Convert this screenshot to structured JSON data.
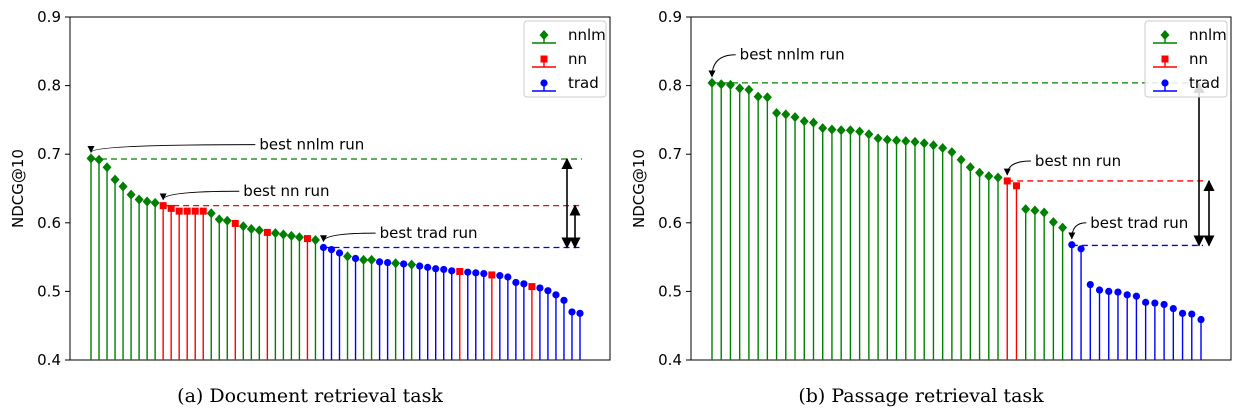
{
  "chart_data": [
    {
      "type": "stem",
      "ylabel": "NDCG@10",
      "ylim": [
        0.4,
        0.9
      ],
      "yticks": [
        "0.4",
        "0.5",
        "0.6",
        "0.7",
        "0.8",
        "0.9"
      ],
      "legend": [
        {
          "name": "nnlm",
          "color": "#008000",
          "marker": "diamond"
        },
        {
          "name": "nn",
          "color": "#ff0000",
          "marker": "square"
        },
        {
          "name": "trad",
          "color": "#0000ff",
          "marker": "circle"
        }
      ],
      "points": [
        {
          "y": 0.694,
          "s": "nnlm"
        },
        {
          "y": 0.692,
          "s": "nnlm"
        },
        {
          "y": 0.681,
          "s": "nnlm"
        },
        {
          "y": 0.663,
          "s": "nnlm"
        },
        {
          "y": 0.653,
          "s": "nnlm"
        },
        {
          "y": 0.641,
          "s": "nnlm"
        },
        {
          "y": 0.634,
          "s": "nnlm"
        },
        {
          "y": 0.631,
          "s": "nnlm"
        },
        {
          "y": 0.629,
          "s": "nnlm"
        },
        {
          "y": 0.625,
          "s": "nn"
        },
        {
          "y": 0.621,
          "s": "nn"
        },
        {
          "y": 0.617,
          "s": "nn"
        },
        {
          "y": 0.617,
          "s": "nn"
        },
        {
          "y": 0.617,
          "s": "nn"
        },
        {
          "y": 0.617,
          "s": "nn"
        },
        {
          "y": 0.614,
          "s": "nnlm"
        },
        {
          "y": 0.605,
          "s": "nnlm"
        },
        {
          "y": 0.603,
          "s": "nnlm"
        },
        {
          "y": 0.599,
          "s": "nn"
        },
        {
          "y": 0.595,
          "s": "nnlm"
        },
        {
          "y": 0.591,
          "s": "nnlm"
        },
        {
          "y": 0.589,
          "s": "nnlm"
        },
        {
          "y": 0.586,
          "s": "nn"
        },
        {
          "y": 0.585,
          "s": "nnlm"
        },
        {
          "y": 0.583,
          "s": "nnlm"
        },
        {
          "y": 0.581,
          "s": "nnlm"
        },
        {
          "y": 0.579,
          "s": "nnlm"
        },
        {
          "y": 0.577,
          "s": "nn"
        },
        {
          "y": 0.575,
          "s": "nnlm"
        },
        {
          "y": 0.564,
          "s": "trad"
        },
        {
          "y": 0.561,
          "s": "trad"
        },
        {
          "y": 0.556,
          "s": "trad"
        },
        {
          "y": 0.551,
          "s": "nnlm"
        },
        {
          "y": 0.548,
          "s": "trad"
        },
        {
          "y": 0.546,
          "s": "nnlm"
        },
        {
          "y": 0.546,
          "s": "nnlm"
        },
        {
          "y": 0.543,
          "s": "trad"
        },
        {
          "y": 0.542,
          "s": "trad"
        },
        {
          "y": 0.541,
          "s": "nnlm"
        },
        {
          "y": 0.54,
          "s": "trad"
        },
        {
          "y": 0.539,
          "s": "nnlm"
        },
        {
          "y": 0.537,
          "s": "trad"
        },
        {
          "y": 0.535,
          "s": "trad"
        },
        {
          "y": 0.533,
          "s": "trad"
        },
        {
          "y": 0.532,
          "s": "trad"
        },
        {
          "y": 0.53,
          "s": "trad"
        },
        {
          "y": 0.529,
          "s": "nn"
        },
        {
          "y": 0.528,
          "s": "trad"
        },
        {
          "y": 0.527,
          "s": "trad"
        },
        {
          "y": 0.526,
          "s": "trad"
        },
        {
          "y": 0.524,
          "s": "nn"
        },
        {
          "y": 0.523,
          "s": "trad"
        },
        {
          "y": 0.521,
          "s": "trad"
        },
        {
          "y": 0.513,
          "s": "trad"
        },
        {
          "y": 0.511,
          "s": "trad"
        },
        {
          "y": 0.507,
          "s": "nn"
        },
        {
          "y": 0.505,
          "s": "trad"
        },
        {
          "y": 0.501,
          "s": "trad"
        },
        {
          "y": 0.495,
          "s": "trad"
        },
        {
          "y": 0.487,
          "s": "trad"
        },
        {
          "y": 0.47,
          "s": "trad"
        },
        {
          "y": 0.468,
          "s": "trad"
        }
      ],
      "hlines": [
        {
          "y": 0.693,
          "series": "nnlm"
        },
        {
          "y": 0.625,
          "series": "nn"
        },
        {
          "y": 0.564,
          "series": "trad"
        }
      ],
      "annotations": [
        {
          "text": "best nnlm run",
          "point": 0,
          "tx": 21,
          "ty": 0.714
        },
        {
          "text": "best nn run",
          "point": 9,
          "tx": 19,
          "ty": 0.646
        },
        {
          "text": "best trad run",
          "point": 29,
          "tx": 36,
          "ty": 0.585
        }
      ],
      "arrows": [
        {
          "y1": 0.693,
          "y2": 0.564
        },
        {
          "y1": 0.625,
          "y2": 0.564
        }
      ],
      "caption": "(a) Document retrieval task"
    },
    {
      "type": "stem",
      "ylabel": "NDCG@10",
      "ylim": [
        0.4,
        0.9
      ],
      "yticks": [
        "0.4",
        "0.5",
        "0.6",
        "0.7",
        "0.8",
        "0.9"
      ],
      "legend": [
        {
          "name": "nnlm",
          "color": "#008000",
          "marker": "diamond"
        },
        {
          "name": "nn",
          "color": "#ff0000",
          "marker": "square"
        },
        {
          "name": "trad",
          "color": "#0000ff",
          "marker": "circle"
        }
      ],
      "points": [
        {
          "y": 0.804,
          "s": "nnlm"
        },
        {
          "y": 0.802,
          "s": "nnlm"
        },
        {
          "y": 0.801,
          "s": "nnlm"
        },
        {
          "y": 0.796,
          "s": "nnlm"
        },
        {
          "y": 0.794,
          "s": "nnlm"
        },
        {
          "y": 0.784,
          "s": "nnlm"
        },
        {
          "y": 0.783,
          "s": "nnlm"
        },
        {
          "y": 0.76,
          "s": "nnlm"
        },
        {
          "y": 0.758,
          "s": "nnlm"
        },
        {
          "y": 0.754,
          "s": "nnlm"
        },
        {
          "y": 0.748,
          "s": "nnlm"
        },
        {
          "y": 0.746,
          "s": "nnlm"
        },
        {
          "y": 0.738,
          "s": "nnlm"
        },
        {
          "y": 0.736,
          "s": "nnlm"
        },
        {
          "y": 0.735,
          "s": "nnlm"
        },
        {
          "y": 0.735,
          "s": "nnlm"
        },
        {
          "y": 0.733,
          "s": "nnlm"
        },
        {
          "y": 0.729,
          "s": "nnlm"
        },
        {
          "y": 0.723,
          "s": "nnlm"
        },
        {
          "y": 0.721,
          "s": "nnlm"
        },
        {
          "y": 0.72,
          "s": "nnlm"
        },
        {
          "y": 0.719,
          "s": "nnlm"
        },
        {
          "y": 0.718,
          "s": "nnlm"
        },
        {
          "y": 0.716,
          "s": "nnlm"
        },
        {
          "y": 0.713,
          "s": "nnlm"
        },
        {
          "y": 0.709,
          "s": "nnlm"
        },
        {
          "y": 0.703,
          "s": "nnlm"
        },
        {
          "y": 0.692,
          "s": "nnlm"
        },
        {
          "y": 0.681,
          "s": "nnlm"
        },
        {
          "y": 0.673,
          "s": "nnlm"
        },
        {
          "y": 0.668,
          "s": "nnlm"
        },
        {
          "y": 0.666,
          "s": "nnlm"
        },
        {
          "y": 0.661,
          "s": "nn"
        },
        {
          "y": 0.654,
          "s": "nn"
        },
        {
          "y": 0.62,
          "s": "nnlm"
        },
        {
          "y": 0.618,
          "s": "nnlm"
        },
        {
          "y": 0.615,
          "s": "nnlm"
        },
        {
          "y": 0.601,
          "s": "nnlm"
        },
        {
          "y": 0.593,
          "s": "nnlm"
        },
        {
          "y": 0.568,
          "s": "trad"
        },
        {
          "y": 0.562,
          "s": "trad"
        },
        {
          "y": 0.51,
          "s": "trad"
        },
        {
          "y": 0.502,
          "s": "trad"
        },
        {
          "y": 0.5,
          "s": "trad"
        },
        {
          "y": 0.499,
          "s": "trad"
        },
        {
          "y": 0.495,
          "s": "trad"
        },
        {
          "y": 0.493,
          "s": "trad"
        },
        {
          "y": 0.484,
          "s": "trad"
        },
        {
          "y": 0.483,
          "s": "trad"
        },
        {
          "y": 0.481,
          "s": "trad"
        },
        {
          "y": 0.475,
          "s": "trad"
        },
        {
          "y": 0.468,
          "s": "trad"
        },
        {
          "y": 0.467,
          "s": "trad"
        },
        {
          "y": 0.459,
          "s": "trad"
        }
      ],
      "hlines": [
        {
          "y": 0.804,
          "series": "nnlm"
        },
        {
          "y": 0.661,
          "series": "nn"
        },
        {
          "y": 0.567,
          "series": "trad"
        }
      ],
      "annotations": [
        {
          "text": "best nnlm run",
          "point": 0,
          "tx": 3,
          "ty": 0.845
        },
        {
          "text": "best nn run",
          "point": 32,
          "tx": 35,
          "ty": 0.69
        },
        {
          "text": "best trad run",
          "point": 39,
          "tx": 41,
          "ty": 0.6
        }
      ],
      "arrows": [
        {
          "y1": 0.804,
          "y2": 0.567
        },
        {
          "y1": 0.661,
          "y2": 0.567
        }
      ],
      "caption": "(b) Passage retrieval task"
    }
  ]
}
